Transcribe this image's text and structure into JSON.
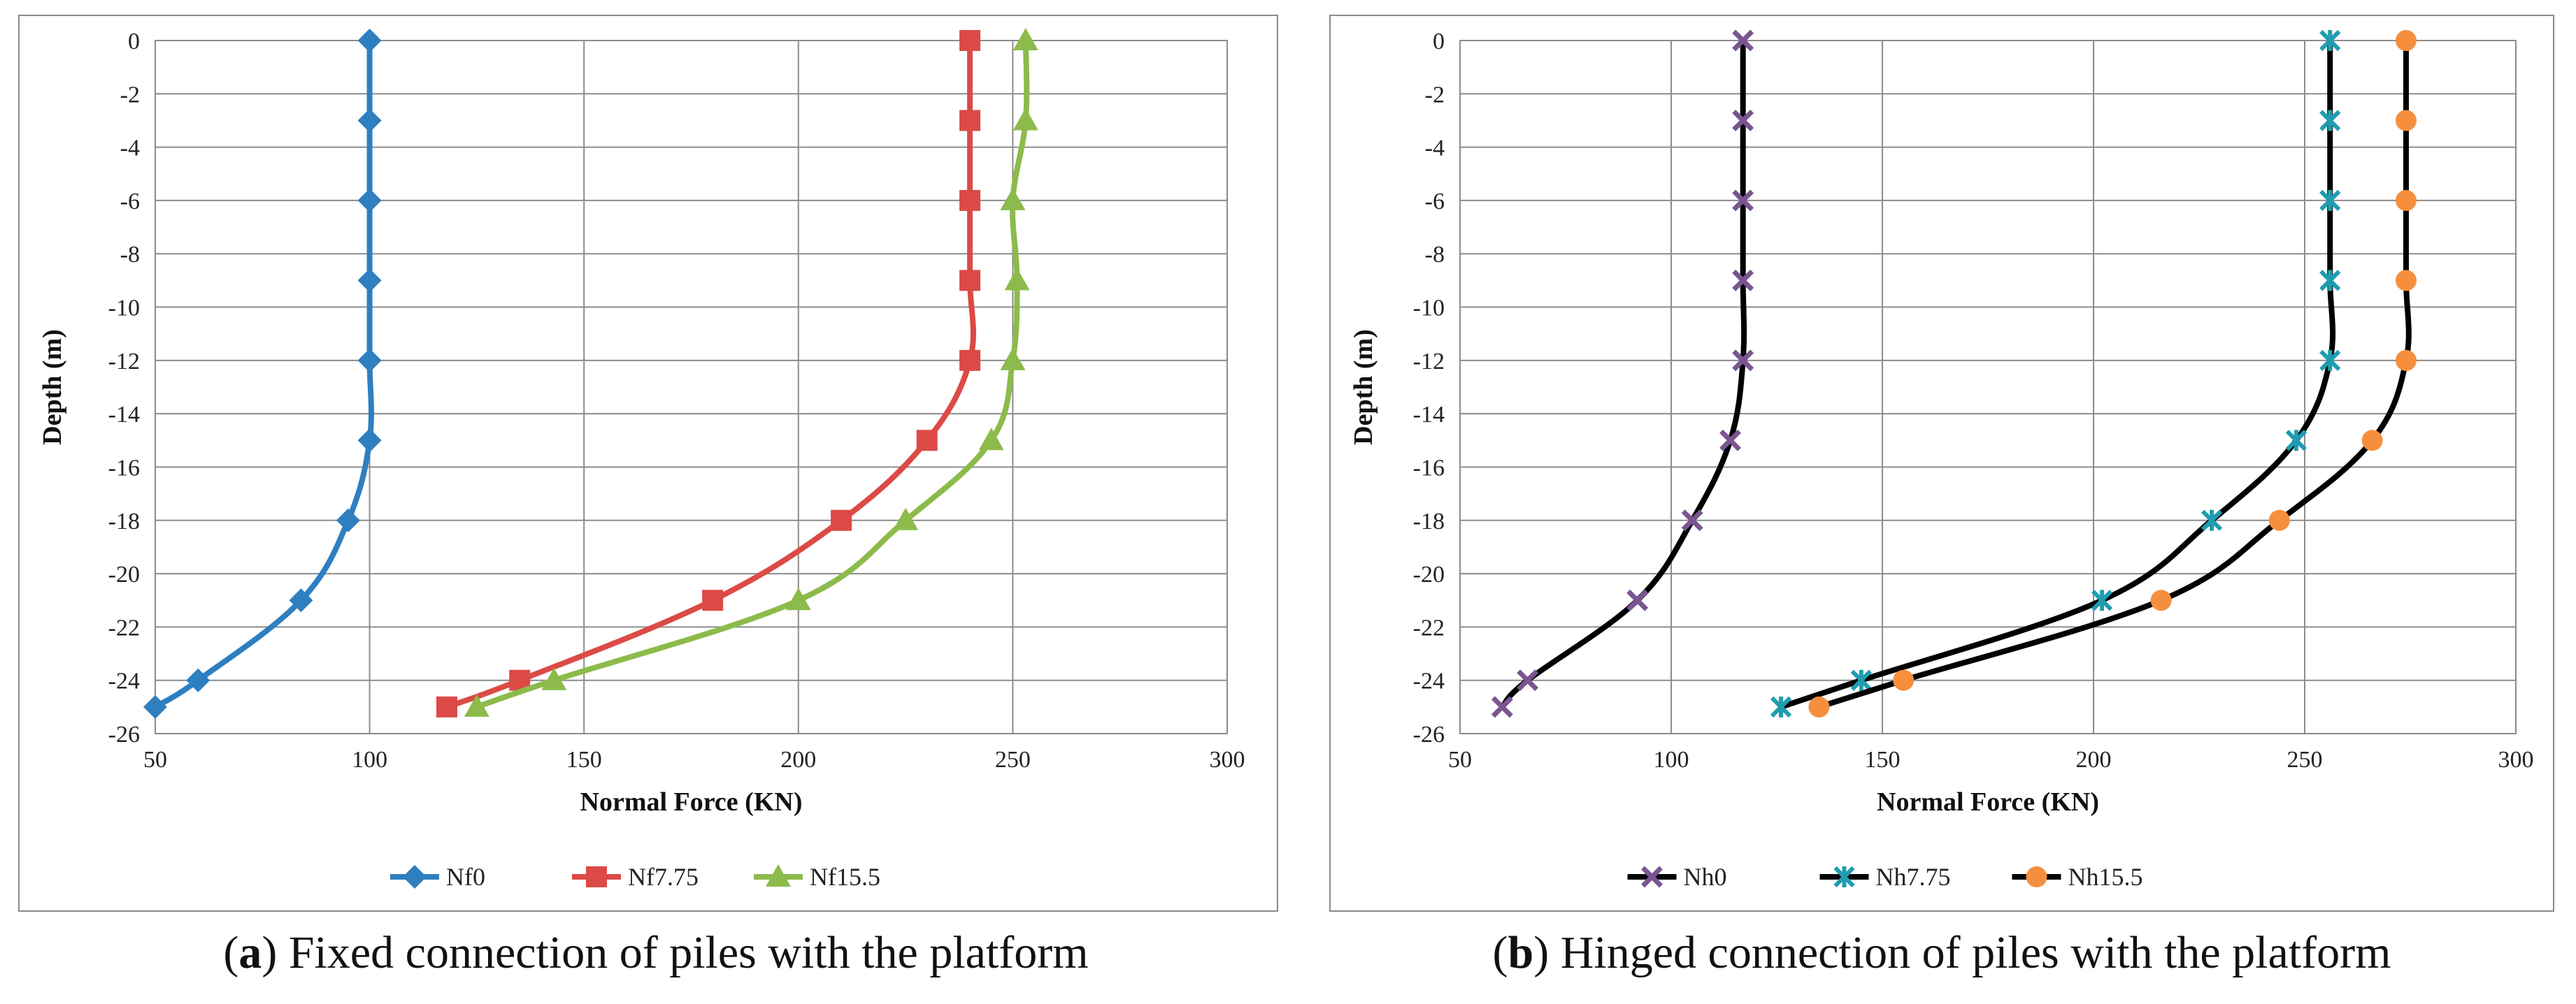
{
  "chart_data": [
    {
      "type": "line",
      "xlabel": "Normal Force (KN)",
      "ylabel": "Depth (m)",
      "xlim": [
        50,
        300
      ],
      "ylim": [
        -26,
        0
      ],
      "xticks": [
        50,
        100,
        150,
        200,
        250,
        300
      ],
      "yticks": [
        0,
        -2,
        -4,
        -6,
        -8,
        -10,
        -12,
        -14,
        -16,
        -18,
        -20,
        -22,
        -24,
        -26
      ],
      "grid": "both",
      "legend_position": "bottom",
      "caption_label": "a",
      "caption_text": " Fixed connection of piles with the platform",
      "series": [
        {
          "name": "Nf0",
          "color": "#2e7fc0",
          "marker": "diamond",
          "points": [
            [
              100,
              0
            ],
            [
              100,
              -3
            ],
            [
              100,
              -6
            ],
            [
              100,
              -9
            ],
            [
              100,
              -12
            ],
            [
              100,
              -15
            ],
            [
              95,
              -18
            ],
            [
              84,
              -21
            ],
            [
              60,
              -24
            ],
            [
              50,
              -25
            ]
          ]
        },
        {
          "name": "Nf7.75",
          "color": "#dc4a46",
          "marker": "square",
          "points": [
            [
              240,
              0
            ],
            [
              240,
              -3
            ],
            [
              240,
              -6
            ],
            [
              240,
              -9
            ],
            [
              240,
              -12
            ],
            [
              230,
              -15
            ],
            [
              210,
              -18
            ],
            [
              180,
              -21
            ],
            [
              135,
              -24
            ],
            [
              118,
              -25
            ]
          ]
        },
        {
          "name": "Nf15.5",
          "color": "#8cbb4b",
          "marker": "triangle",
          "points": [
            [
              253,
              0
            ],
            [
              253,
              -3
            ],
            [
              250,
              -6
            ],
            [
              251,
              -9
            ],
            [
              250,
              -12
            ],
            [
              245,
              -15
            ],
            [
              225,
              -18
            ],
            [
              200,
              -21
            ],
            [
              143,
              -24
            ],
            [
              125,
              -25
            ]
          ]
        }
      ]
    },
    {
      "type": "line",
      "xlabel": "Normal Force (KN)",
      "ylabel": "Depth (m)",
      "xlim": [
        50,
        300
      ],
      "ylim": [
        -26,
        0
      ],
      "xticks": [
        50,
        100,
        150,
        200,
        250,
        300
      ],
      "yticks": [
        0,
        -2,
        -4,
        -6,
        -8,
        -10,
        -12,
        -14,
        -16,
        -18,
        -20,
        -22,
        -24,
        -26
      ],
      "grid": "both",
      "legend_position": "bottom",
      "caption_label": "b",
      "caption_text": " Hinged connection of piles with the platform",
      "series": [
        {
          "name": "Nh0",
          "color": "#000000",
          "marker_color": "#7a5591",
          "marker": "x",
          "points": [
            [
              117,
              0
            ],
            [
              117,
              -3
            ],
            [
              117,
              -6
            ],
            [
              117,
              -9
            ],
            [
              117,
              -12
            ],
            [
              114,
              -15
            ],
            [
              105,
              -18
            ],
            [
              92,
              -21
            ],
            [
              66,
              -24
            ],
            [
              60,
              -25
            ]
          ]
        },
        {
          "name": "Nh7.75",
          "color": "#000000",
          "marker_color": "#1f9cb0",
          "marker": "star",
          "points": [
            [
              256,
              0
            ],
            [
              256,
              -3
            ],
            [
              256,
              -6
            ],
            [
              256,
              -9
            ],
            [
              256,
              -12
            ],
            [
              248,
              -15
            ],
            [
              228,
              -18
            ],
            [
              202,
              -21
            ],
            [
              145,
              -24
            ],
            [
              126,
              -25
            ]
          ]
        },
        {
          "name": "Nh15.5",
          "color": "#000000",
          "marker_color": "#f68f3d",
          "marker": "circle",
          "points": [
            [
              274,
              0
            ],
            [
              274,
              -3
            ],
            [
              274,
              -6
            ],
            [
              274,
              -9
            ],
            [
              274,
              -12
            ],
            [
              266,
              -15
            ],
            [
              244,
              -18
            ],
            [
              216,
              -21
            ],
            [
              155,
              -24
            ],
            [
              135,
              -25
            ]
          ]
        }
      ]
    }
  ]
}
